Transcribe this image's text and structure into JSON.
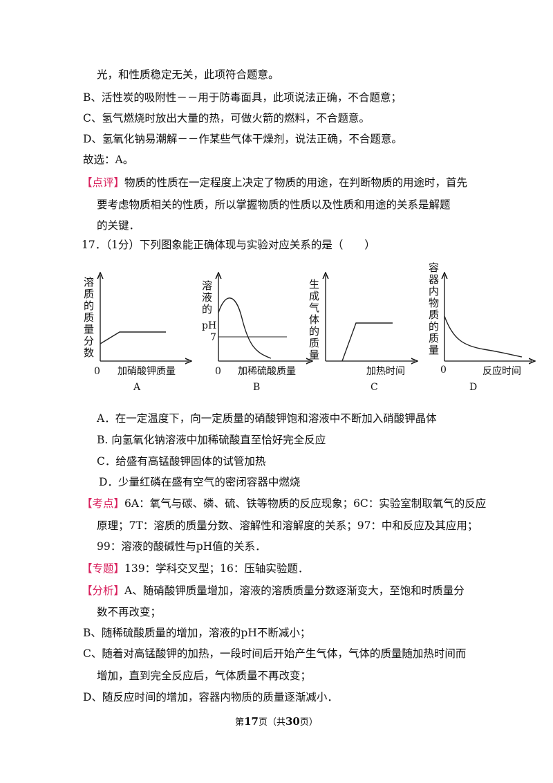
{
  "previous": {
    "line0": "光，和性质稳定无关，此项符合题意。",
    "line1": "B、活性炭的吸附性－－用于防毒面具，此项说法正确，不合题意；",
    "line2": "C、氢气燃烧时放出大量的热，可做火箭的燃料，不合题意。",
    "line3": "D、氢氧化钠易潮解－－作某些气体干燥剂，说法正确，不合题意。",
    "answer": "故选：A。",
    "comment_tag": "【点评】",
    "comment": [
      "物质的性质在一定程度上决定了物质的用途，在判断物质的用途时，首先",
      "要考虑物质相关的性质，所以掌握物质的性质以及性质和用途的关系是解题",
      "的关键．"
    ]
  },
  "question": {
    "stem": "17．（1分）下列图象能正确体现与实验对应关系的是（　　）",
    "graphs": [
      {
        "y_label": "溶质的质量分数",
        "origin": "0",
        "x_label": "加硝酸钾质量",
        "letter": "A"
      },
      {
        "y_label": "溶液的",
        "y_unit": "pH",
        "reference": "7",
        "origin": "0",
        "x_label": "加稀硫酸质量",
        "letter": "B"
      },
      {
        "y_label": "生成气体的质量",
        "x_label": "加热时间",
        "letter": "C"
      },
      {
        "y_label": "容器内物质的质量",
        "origin": "0",
        "x_label": "反应时间",
        "letter": "D"
      }
    ],
    "options": [
      "A．在一定温度下，向一定质量的硝酸钾饱和溶液中不断加入硝酸钾晶体",
      "B. 向氢氧化钠溶液中加稀硫酸直至恰好完全反应",
      "C．给盛有高锰酸钾固体的试管加热",
      "D．少量红磷在盛有空气的密闭容器中燃烧"
    ]
  },
  "solution": {
    "points_tag": "【考点】",
    "points": [
      "6A：氧气与碳、磷、硫、铁等物质的反应现象；6C：实验室制取氧气的反应",
      "原理；7T：溶质的质量分数、溶解性和溶解度的关系；97：中和反应及其应用；",
      "99：溶液的酸碱性与pH值的关系．"
    ],
    "topic_tag": "【专题】",
    "topic": "139：学科交叉型；16：压轴实验题．",
    "analysis_tag": "【分析】",
    "analysis": [
      "A、随硝酸钾质量增加，溶液的溶质质量分数逐渐变大，至饱和时质量分",
      "数不再改变；",
      "B、随稀硫酸质量的增加，溶液的pH不断减小；",
      "C、随着对高锰酸钾的加热，一段时间后开始产生气体，气体的质量随加热时间而",
      "增加，直到完全反应后，气体质量不再改变；",
      "D、随反应时间的增加，容器内物质的质量逐渐减小．"
    ]
  },
  "footer": {
    "prefix": "第",
    "page": "17",
    "middle": "页（共",
    "total": "30",
    "suffix": "页）"
  }
}
